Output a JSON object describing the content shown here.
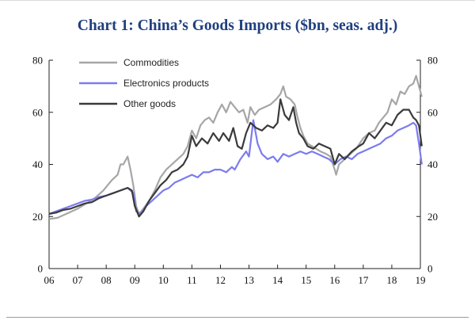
{
  "chart_data": {
    "type": "line",
    "title": "Chart 1: China’s Goods Imports ($bn, seas. adj.)",
    "xlabel": "",
    "ylabel": "",
    "x_tick_labels": [
      "06",
      "07",
      "08",
      "09",
      "10",
      "11",
      "12",
      "13",
      "14",
      "15",
      "16",
      "17",
      "18",
      "19"
    ],
    "y_tick_labels": [
      "0",
      "20",
      "40",
      "60",
      "80"
    ],
    "ylim": [
      0,
      80
    ],
    "xlim": [
      2006.0,
      2019.0
    ],
    "y_axes": "left-and-right, identical scale",
    "grid": false,
    "legend_position": "top-left",
    "series": [
      {
        "name": "Commodities",
        "color": "#a6a6a6",
        "points": [
          [
            2006.0,
            19
          ],
          [
            2006.3,
            19.5
          ],
          [
            2006.6,
            21
          ],
          [
            2007.0,
            23
          ],
          [
            2007.3,
            25
          ],
          [
            2007.6,
            27
          ],
          [
            2007.9,
            30
          ],
          [
            2008.2,
            34
          ],
          [
            2008.4,
            36
          ],
          [
            2008.5,
            40
          ],
          [
            2008.6,
            40
          ],
          [
            2008.75,
            43
          ],
          [
            2008.85,
            38
          ],
          [
            2008.95,
            32
          ],
          [
            2009.05,
            24
          ],
          [
            2009.15,
            21
          ],
          [
            2009.3,
            23
          ],
          [
            2009.5,
            26
          ],
          [
            2009.7,
            30
          ],
          [
            2009.9,
            35
          ],
          [
            2010.1,
            38
          ],
          [
            2010.3,
            40
          ],
          [
            2010.5,
            42
          ],
          [
            2010.7,
            44
          ],
          [
            2010.85,
            47
          ],
          [
            2011.0,
            53
          ],
          [
            2011.15,
            50
          ],
          [
            2011.3,
            55
          ],
          [
            2011.45,
            57
          ],
          [
            2011.6,
            58
          ],
          [
            2011.75,
            56
          ],
          [
            2011.9,
            60
          ],
          [
            2012.05,
            63
          ],
          [
            2012.2,
            60
          ],
          [
            2012.35,
            64
          ],
          [
            2012.5,
            62
          ],
          [
            2012.65,
            60
          ],
          [
            2012.8,
            61
          ],
          [
            2012.95,
            56
          ],
          [
            2013.05,
            62
          ],
          [
            2013.2,
            59
          ],
          [
            2013.35,
            61
          ],
          [
            2013.55,
            62
          ],
          [
            2013.75,
            63
          ],
          [
            2013.95,
            65
          ],
          [
            2014.1,
            67
          ],
          [
            2014.2,
            70
          ],
          [
            2014.3,
            66
          ],
          [
            2014.45,
            65
          ],
          [
            2014.6,
            63
          ],
          [
            2014.7,
            58
          ],
          [
            2014.8,
            54
          ],
          [
            2014.9,
            51
          ],
          [
            2015.05,
            48
          ],
          [
            2015.2,
            47
          ],
          [
            2015.35,
            46
          ],
          [
            2015.5,
            45
          ],
          [
            2015.7,
            44
          ],
          [
            2015.85,
            43
          ],
          [
            2016.0,
            38
          ],
          [
            2016.05,
            36
          ],
          [
            2016.15,
            40
          ],
          [
            2016.35,
            42
          ],
          [
            2016.55,
            44
          ],
          [
            2016.75,
            46
          ],
          [
            2017.0,
            50
          ],
          [
            2017.2,
            52
          ],
          [
            2017.4,
            53
          ],
          [
            2017.55,
            56
          ],
          [
            2017.7,
            58
          ],
          [
            2017.85,
            60
          ],
          [
            2018.0,
            65
          ],
          [
            2018.15,
            63
          ],
          [
            2018.3,
            68
          ],
          [
            2018.45,
            67
          ],
          [
            2018.6,
            70
          ],
          [
            2018.75,
            71
          ],
          [
            2018.85,
            74
          ],
          [
            2018.95,
            70
          ],
          [
            2019.05,
            66
          ]
        ]
      },
      {
        "name": "Electronics products",
        "color": "#7b7bf0",
        "points": [
          [
            2006.0,
            21
          ],
          [
            2006.25,
            22
          ],
          [
            2006.5,
            23
          ],
          [
            2006.75,
            24
          ],
          [
            2007.0,
            25
          ],
          [
            2007.25,
            26
          ],
          [
            2007.5,
            26.5
          ],
          [
            2007.75,
            27.5
          ],
          [
            2008.0,
            28
          ],
          [
            2008.25,
            29
          ],
          [
            2008.5,
            30
          ],
          [
            2008.75,
            31
          ],
          [
            2008.95,
            29
          ],
          [
            2009.05,
            22
          ],
          [
            2009.2,
            21
          ],
          [
            2009.4,
            24
          ],
          [
            2009.6,
            26
          ],
          [
            2009.8,
            28
          ],
          [
            2010.0,
            30
          ],
          [
            2010.2,
            31
          ],
          [
            2010.4,
            33
          ],
          [
            2010.6,
            34
          ],
          [
            2010.8,
            35
          ],
          [
            2011.0,
            36
          ],
          [
            2011.2,
            35
          ],
          [
            2011.4,
            37
          ],
          [
            2011.6,
            37
          ],
          [
            2011.8,
            38
          ],
          [
            2012.0,
            38
          ],
          [
            2012.2,
            37
          ],
          [
            2012.4,
            39
          ],
          [
            2012.5,
            38
          ],
          [
            2012.7,
            42
          ],
          [
            2012.9,
            45
          ],
          [
            2013.0,
            43
          ],
          [
            2013.15,
            57
          ],
          [
            2013.3,
            48
          ],
          [
            2013.45,
            44
          ],
          [
            2013.65,
            42
          ],
          [
            2013.85,
            43
          ],
          [
            2014.0,
            41
          ],
          [
            2014.2,
            44
          ],
          [
            2014.4,
            43
          ],
          [
            2014.6,
            44
          ],
          [
            2014.8,
            45
          ],
          [
            2015.0,
            44
          ],
          [
            2015.2,
            45
          ],
          [
            2015.4,
            44
          ],
          [
            2015.6,
            43
          ],
          [
            2015.8,
            42
          ],
          [
            2016.0,
            40
          ],
          [
            2016.2,
            42
          ],
          [
            2016.4,
            43
          ],
          [
            2016.6,
            42
          ],
          [
            2016.8,
            44
          ],
          [
            2017.0,
            45
          ],
          [
            2017.2,
            46
          ],
          [
            2017.4,
            47
          ],
          [
            2017.6,
            48
          ],
          [
            2017.8,
            50
          ],
          [
            2018.0,
            51
          ],
          [
            2018.2,
            53
          ],
          [
            2018.4,
            54
          ],
          [
            2018.6,
            55
          ],
          [
            2018.75,
            56
          ],
          [
            2018.85,
            55
          ],
          [
            2018.95,
            48
          ],
          [
            2019.05,
            40
          ]
        ]
      },
      {
        "name": "Other goods",
        "color": "#3a3a3a",
        "points": [
          [
            2006.0,
            21
          ],
          [
            2006.25,
            21.5
          ],
          [
            2006.5,
            22.5
          ],
          [
            2006.75,
            23
          ],
          [
            2007.0,
            24
          ],
          [
            2007.25,
            25
          ],
          [
            2007.5,
            25.5
          ],
          [
            2007.75,
            27
          ],
          [
            2008.0,
            28
          ],
          [
            2008.25,
            29
          ],
          [
            2008.5,
            30
          ],
          [
            2008.75,
            31
          ],
          [
            2008.9,
            30
          ],
          [
            2009.0,
            24
          ],
          [
            2009.15,
            20
          ],
          [
            2009.3,
            22
          ],
          [
            2009.5,
            26
          ],
          [
            2009.7,
            29
          ],
          [
            2009.9,
            32
          ],
          [
            2010.1,
            34
          ],
          [
            2010.3,
            37
          ],
          [
            2010.5,
            38
          ],
          [
            2010.7,
            40
          ],
          [
            2010.85,
            43
          ],
          [
            2011.0,
            51
          ],
          [
            2011.15,
            47
          ],
          [
            2011.35,
            50
          ],
          [
            2011.55,
            48
          ],
          [
            2011.75,
            52
          ],
          [
            2011.95,
            49
          ],
          [
            2012.1,
            52
          ],
          [
            2012.3,
            49
          ],
          [
            2012.45,
            54
          ],
          [
            2012.6,
            47
          ],
          [
            2012.75,
            46
          ],
          [
            2012.9,
            52
          ],
          [
            2013.05,
            56
          ],
          [
            2013.25,
            54
          ],
          [
            2013.45,
            53
          ],
          [
            2013.65,
            55
          ],
          [
            2013.85,
            54
          ],
          [
            2014.0,
            56
          ],
          [
            2014.1,
            65
          ],
          [
            2014.25,
            59
          ],
          [
            2014.4,
            57
          ],
          [
            2014.55,
            62
          ],
          [
            2014.65,
            56
          ],
          [
            2014.75,
            52
          ],
          [
            2014.9,
            50
          ],
          [
            2015.05,
            47
          ],
          [
            2015.25,
            46
          ],
          [
            2015.45,
            48
          ],
          [
            2015.65,
            47
          ],
          [
            2015.85,
            46
          ],
          [
            2016.0,
            40
          ],
          [
            2016.15,
            44
          ],
          [
            2016.35,
            42
          ],
          [
            2016.6,
            45
          ],
          [
            2016.85,
            47
          ],
          [
            2017.0,
            48
          ],
          [
            2017.2,
            52
          ],
          [
            2017.4,
            50
          ],
          [
            2017.6,
            53
          ],
          [
            2017.8,
            56
          ],
          [
            2018.0,
            55
          ],
          [
            2018.2,
            59
          ],
          [
            2018.4,
            61
          ],
          [
            2018.6,
            61
          ],
          [
            2018.75,
            58
          ],
          [
            2018.85,
            57
          ],
          [
            2018.95,
            55
          ],
          [
            2019.05,
            47
          ]
        ]
      }
    ]
  }
}
